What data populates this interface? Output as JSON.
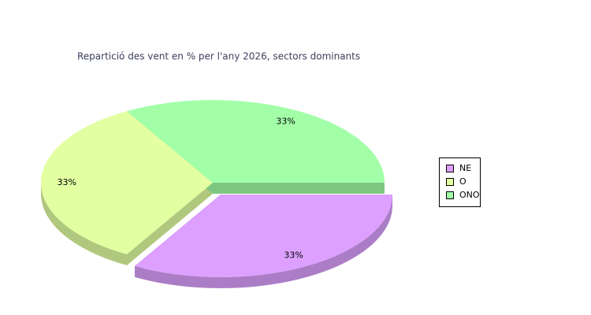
{
  "chart_data": {
    "type": "pie",
    "title": "Repartició des vent en % per l'any 2026, sectors dominants",
    "categories": [
      "NE",
      "O",
      "ONO"
    ],
    "values": [
      33,
      33,
      33
    ],
    "value_labels": [
      "33%",
      "33%",
      "33%"
    ],
    "colors": [
      "#dda0ff",
      "#e2ffa2",
      "#a2ffa8"
    ],
    "legend": "right"
  }
}
